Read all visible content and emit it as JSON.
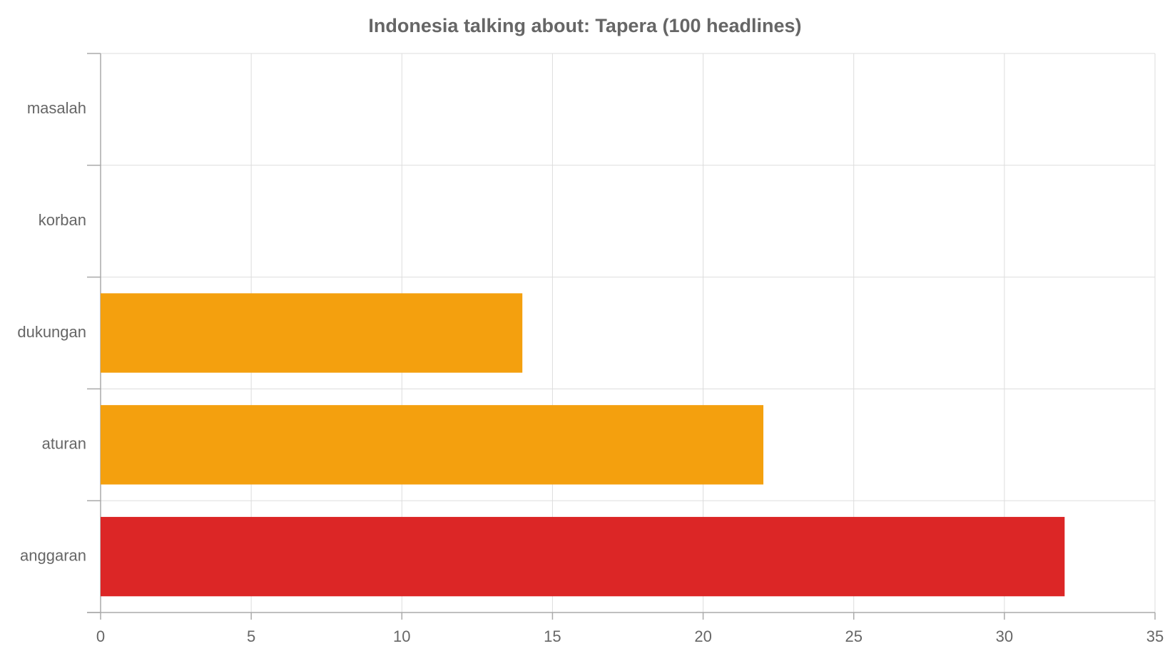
{
  "chart_data": {
    "type": "hbar",
    "title": "Indonesia talking about: Tapera (100 headlines)",
    "categories": [
      "masalah",
      "korban",
      "dukungan",
      "aturan",
      "anggaran"
    ],
    "values": [
      0,
      0,
      14,
      22,
      32
    ],
    "colors": [
      "#f4a00e",
      "#f4a00e",
      "#f4a00e",
      "#f4a00e",
      "#dc2626"
    ],
    "xlim": [
      0,
      35
    ],
    "xticks": [
      0,
      5,
      10,
      15,
      20,
      25,
      30,
      35
    ],
    "grid": true
  }
}
